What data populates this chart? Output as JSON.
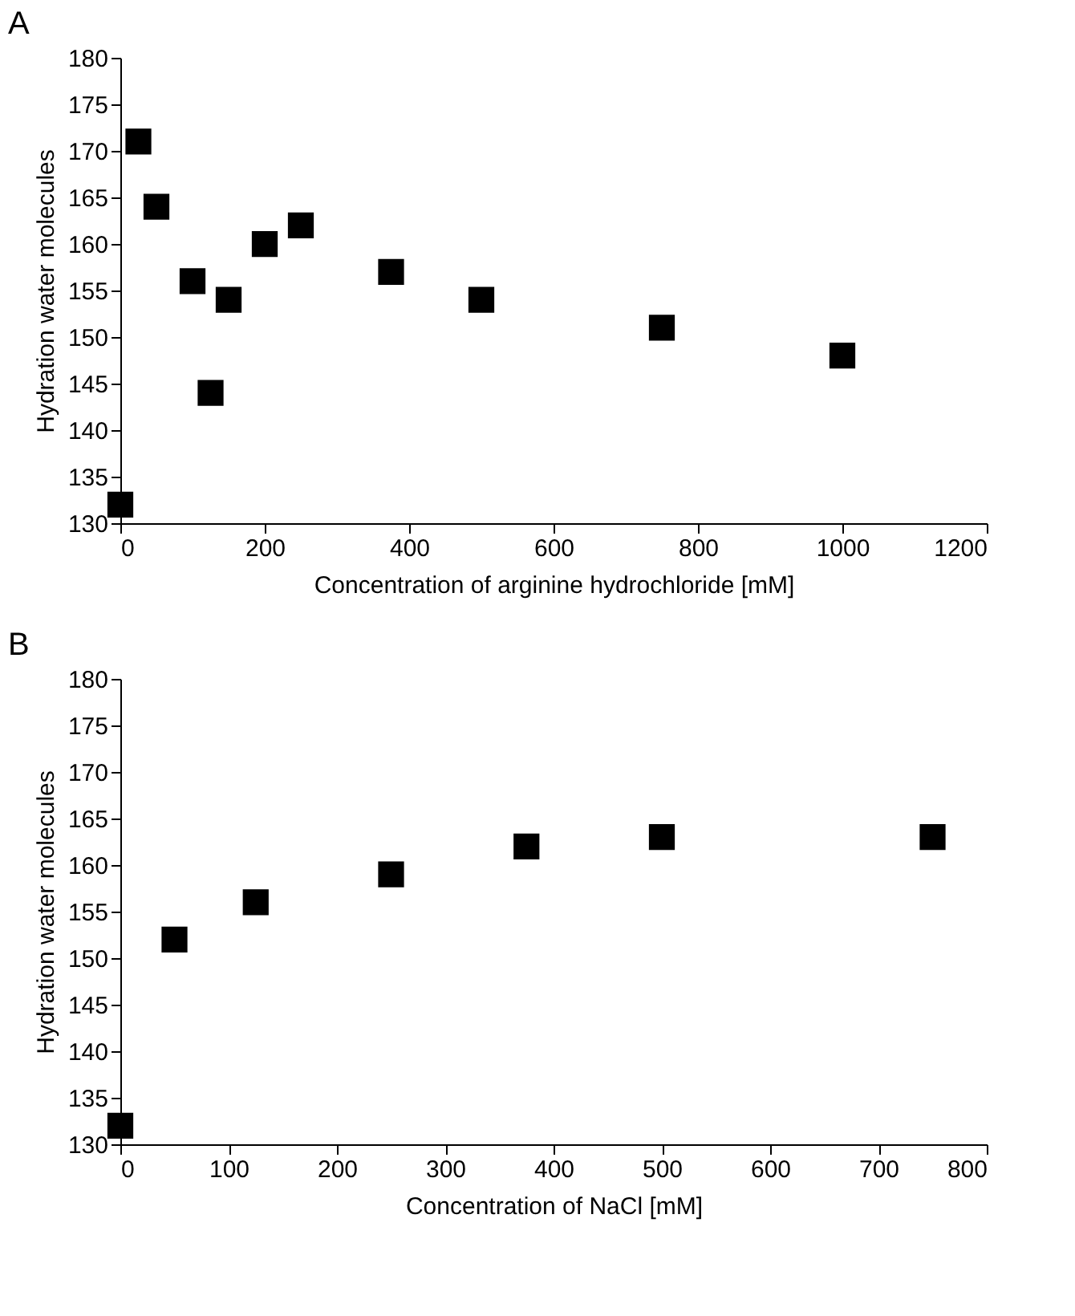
{
  "chart_data": [
    {
      "type": "scatter",
      "title": "A",
      "xlabel": "Concentration of arginine hydrochloride [mM]",
      "ylabel": "Hydration water molecules",
      "marker": "square",
      "grid": false,
      "x": [
        0,
        25,
        50,
        100,
        125,
        150,
        200,
        250,
        375,
        500,
        750,
        1000
      ],
      "series": [
        {
          "color": "#000000",
          "values": [
            132,
            171,
            164,
            156,
            144,
            154,
            160,
            162,
            157,
            154,
            151,
            148
          ]
        }
      ],
      "xlim": [
        0,
        1200
      ],
      "xticks": [
        0,
        200,
        400,
        600,
        800,
        1000,
        1200
      ],
      "ylim": [
        130,
        180
      ],
      "yticks": [
        130,
        135,
        140,
        145,
        150,
        155,
        160,
        165,
        170,
        175,
        180
      ]
    },
    {
      "type": "scatter",
      "title": "B",
      "xlabel": "Concentration of NaCl  [mM]",
      "ylabel": "Hydration water molecules",
      "marker": "square",
      "grid": false,
      "x": [
        0,
        50,
        125,
        250,
        375,
        500,
        750
      ],
      "series": [
        {
          "color": "#000000",
          "values": [
            132,
            152,
            156,
            159,
            162,
            163,
            163
          ]
        }
      ],
      "xlim": [
        0,
        800
      ],
      "xticks": [
        0,
        100,
        200,
        300,
        400,
        500,
        600,
        700,
        800
      ],
      "ylim": [
        130,
        180
      ],
      "yticks": [
        130,
        135,
        140,
        145,
        150,
        155,
        160,
        165,
        170,
        175,
        180
      ]
    }
  ]
}
